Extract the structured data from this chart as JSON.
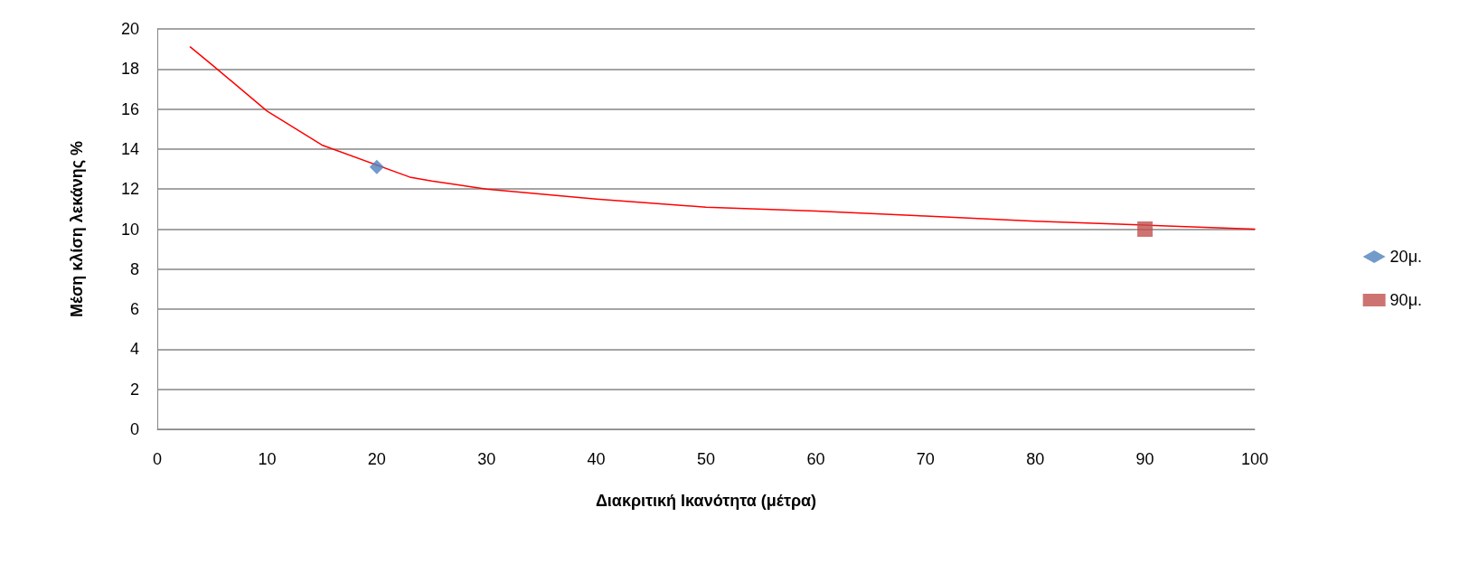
{
  "chart_data": {
    "type": "scatter",
    "xlabel": "Διακριτική Ικανότητα (μέτρα)",
    "ylabel": "Μέση κλίση λεκάνης %",
    "xlim": [
      0,
      100
    ],
    "xticks": [
      0,
      10,
      20,
      30,
      40,
      50,
      60,
      70,
      80,
      90,
      100
    ],
    "ylim": [
      0,
      20
    ],
    "yticks": [
      0,
      2,
      4,
      6,
      8,
      10,
      12,
      14,
      16,
      18,
      20
    ],
    "grid": "y",
    "legend": "right",
    "series": [
      {
        "name": "20μ.",
        "color": "#4f81bd",
        "marker": "diamond",
        "x": [
          20
        ],
        "values": [
          13.1
        ]
      },
      {
        "name": "90μ.",
        "color": "#c0504d",
        "marker": "square",
        "x": [
          90
        ],
        "values": [
          10
        ]
      },
      {
        "type": "line",
        "color": "#ff0000",
        "marker": "none",
        "x": [
          3,
          5,
          10,
          15,
          23,
          25,
          30,
          40,
          50,
          60,
          70,
          80,
          90,
          100
        ],
        "values": [
          19.1,
          18.2,
          15.9,
          14.2,
          12.6,
          12.4,
          12.0,
          11.5,
          11.1,
          10.9,
          10.65,
          10.4,
          10.2,
          10.0
        ]
      }
    ]
  }
}
